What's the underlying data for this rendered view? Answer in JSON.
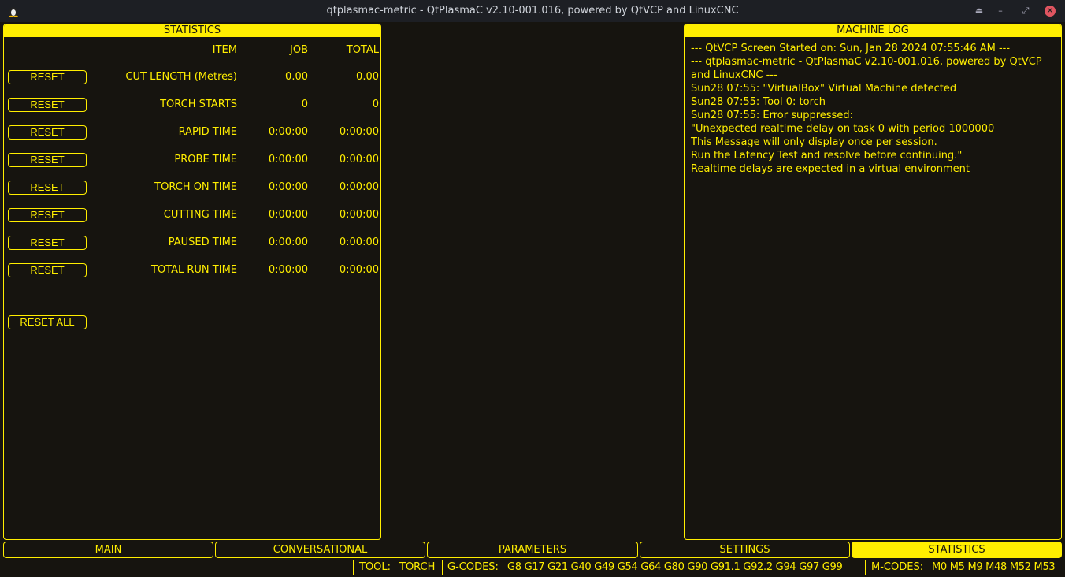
{
  "window": {
    "title": "qtplasmac-metric - QtPlasmaC v2.10-001.016, powered by QtVCP and LinuxCNC"
  },
  "statistics": {
    "title": "STATISTICS",
    "headers": {
      "item": "ITEM",
      "job": "JOB",
      "total": "TOTAL"
    },
    "reset_label": "RESET",
    "reset_all_label": "RESET ALL",
    "rows": [
      {
        "item": "CUT LENGTH (Metres)",
        "job": "0.00",
        "total": "0.00"
      },
      {
        "item": "TORCH STARTS",
        "job": "0",
        "total": "0"
      },
      {
        "item": "RAPID TIME",
        "job": "0:00:00",
        "total": "0:00:00"
      },
      {
        "item": "PROBE TIME",
        "job": "0:00:00",
        "total": "0:00:00"
      },
      {
        "item": "TORCH ON TIME",
        "job": "0:00:00",
        "total": "0:00:00"
      },
      {
        "item": "CUTTING TIME",
        "job": "0:00:00",
        "total": "0:00:00"
      },
      {
        "item": "PAUSED TIME",
        "job": "0:00:00",
        "total": "0:00:00"
      },
      {
        "item": "TOTAL RUN TIME",
        "job": "0:00:00",
        "total": "0:00:00"
      }
    ]
  },
  "machine_log": {
    "title": "MACHINE LOG",
    "lines": [
      "--- QtVCP Screen Started on: Sun, Jan 28 2024 07:55:46 AM ---",
      "--- qtplasmac-metric - QtPlasmaC v2.10-001.016, powered by QtVCP and LinuxCNC ---",
      "Sun28 07:55: \"VirtualBox\" Virtual Machine detected",
      "Sun28 07:55: Tool 0: torch",
      "Sun28 07:55: Error suppressed:",
      "\"Unexpected realtime delay on task 0 with period 1000000",
      "This Message will only display once per session.",
      "Run the Latency Test and resolve before continuing.\"",
      "Realtime delays are expected in a virtual environment"
    ]
  },
  "tabs": [
    {
      "label": "MAIN",
      "active": false
    },
    {
      "label": "CONVERSATIONAL",
      "active": false
    },
    {
      "label": "PARAMETERS",
      "active": false
    },
    {
      "label": "SETTINGS",
      "active": false
    },
    {
      "label": "STATISTICS",
      "active": true
    }
  ],
  "status": {
    "tool_label": "TOOL:",
    "tool_value": "TORCH",
    "gcodes_label": "G-CODES:",
    "gcodes_value": "G8 G17 G21 G40 G49 G54 G64 G80 G90 G91.1 G92.2 G94 G97 G99",
    "mcodes_label": "M-CODES:",
    "mcodes_value": "M0 M5 M9 M48 M52 M53"
  },
  "colors": {
    "accent": "#ffee00",
    "background": "#16140f",
    "titlebar": "#1d1f24",
    "close": "#e05561"
  }
}
